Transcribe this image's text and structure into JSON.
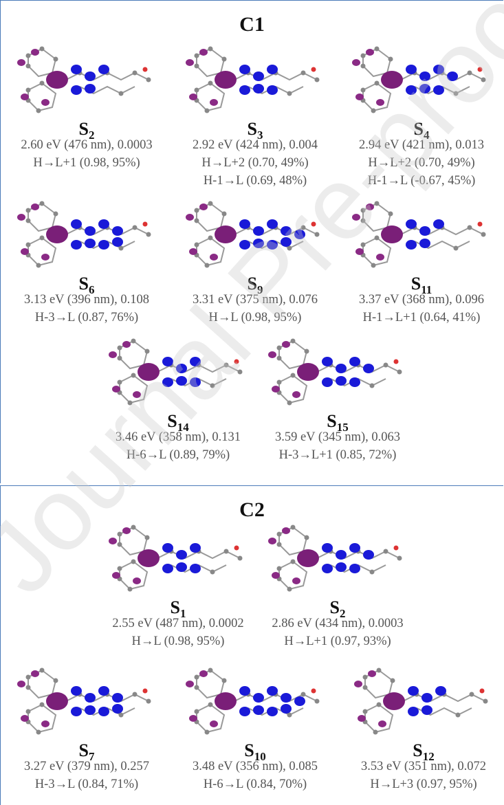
{
  "watermark": "Journal Pre-proof",
  "panels": [
    {
      "title": "C1",
      "states": [
        {
          "label": "S",
          "sub": "2",
          "energy": "2.60 eV (476 nm), 0.0003",
          "transitions": [
            "H→L+1 (0.98, 95%)"
          ]
        },
        {
          "label": "S",
          "sub": "3",
          "energy": "2.92 eV (424 nm), 0.004",
          "transitions": [
            "H→L+2 (0.70, 49%)",
            "H-1→L (0.69, 48%)"
          ]
        },
        {
          "label": "S",
          "sub": "4",
          "energy": "2.94 eV (421 nm), 0.013",
          "transitions": [
            "H→L+2 (0.70, 49%)",
            "H-1→L (-0.67, 45%)"
          ]
        },
        {
          "label": "S",
          "sub": "6",
          "energy": "3.13 eV (396 nm), 0.108",
          "transitions": [
            "H-3→L (0.87, 76%)"
          ]
        },
        {
          "label": "S",
          "sub": "9",
          "energy": "3.31 eV (375 nm), 0.076",
          "transitions": [
            "H→L (0.98, 95%)"
          ]
        },
        {
          "label": "S",
          "sub": "11",
          "energy": "3.37 eV (368 nm), 0.096",
          "transitions": [
            "H-1→L+1 (0.64, 41%)"
          ]
        },
        {
          "label": "S",
          "sub": "14",
          "energy": "3.46 eV (358 nm), 0.131",
          "transitions": [
            "H-6→L (0.89, 79%)"
          ]
        },
        {
          "label": "S",
          "sub": "15",
          "energy": "3.59 eV (345 nm), 0.063",
          "transitions": [
            "H-3→L+1 (0.85, 72%)"
          ]
        }
      ]
    },
    {
      "title": "C2",
      "states": [
        {
          "label": "S",
          "sub": "1",
          "energy": "2.55 eV (487 nm), 0.0002",
          "transitions": [
            "H→L (0.98, 95%)"
          ]
        },
        {
          "label": "S",
          "sub": "2",
          "energy": "2.86 eV (434 nm), 0.0003",
          "transitions": [
            "H→L+1 (0.97, 93%)"
          ]
        },
        {
          "label": "S",
          "sub": "7",
          "energy": "3.27 eV (379 nm), 0.257",
          "transitions": [
            "H-3→L (0.84, 71%)"
          ]
        },
        {
          "label": "S",
          "sub": "10",
          "energy": "3.48 eV (356 nm), 0.085",
          "transitions": [
            "H-6→L (0.84, 70%)"
          ]
        },
        {
          "label": "S",
          "sub": "12",
          "energy": "3.53 eV (351 nm), 0.072",
          "transitions": [
            "H→L+3 (0.97, 95%)"
          ]
        }
      ]
    }
  ]
}
